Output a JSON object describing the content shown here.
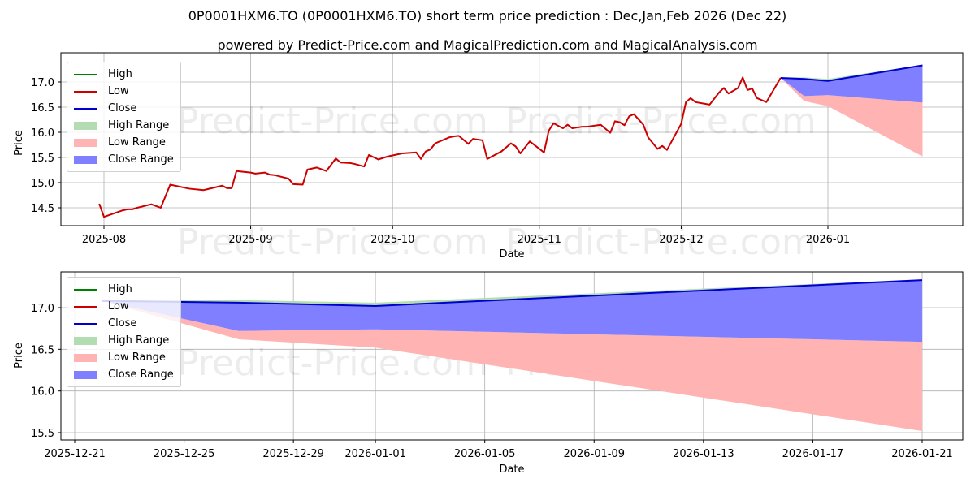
{
  "header": {
    "title": "0P0001HXM6.TO (0P0001HXM6.TO) short term price prediction : Dec,Jan,Feb 2026 (Dec 22)",
    "subtitle": "powered by Predict-Price.com and MagicalPrediction.com and MagicalAnalysis.com"
  },
  "watermark": "Predict-Price.com",
  "colors": {
    "high": "#008000",
    "low": "#cc0000",
    "close": "#0000cc",
    "high_range": "#b3dcb3",
    "low_range": "#ffb3b3",
    "close_range": "#7f7fff",
    "grid": "#b0b0b0"
  },
  "legend": {
    "items": [
      {
        "label": "High",
        "kind": "line",
        "color": "#008000"
      },
      {
        "label": "Low",
        "kind": "line",
        "color": "#cc0000"
      },
      {
        "label": "Close",
        "kind": "line",
        "color": "#0000cc"
      },
      {
        "label": "High Range",
        "kind": "patch",
        "color": "#b3dcb3"
      },
      {
        "label": "Low Range",
        "kind": "patch",
        "color": "#ffb3b3"
      },
      {
        "label": "Close Range",
        "kind": "patch",
        "color": "#7f7fff"
      }
    ]
  },
  "top_chart": {
    "ylabel": "Price",
    "xlabel": "Date",
    "yticks": [
      "17.0",
      "16.5",
      "16.0",
      "15.5",
      "15.0",
      "14.5"
    ],
    "xticks": [
      "2025-08",
      "2025-09",
      "2025-10",
      "2025-11",
      "2025-12",
      "2026-01"
    ]
  },
  "bottom_chart": {
    "ylabel": "Price",
    "xlabel": "Date",
    "yticks": [
      "17.0",
      "16.5",
      "16.0",
      "15.5"
    ],
    "xticks": [
      "2025-12-21",
      "2025-12-25",
      "2025-12-29",
      "2026-01-01",
      "2026-01-05",
      "2026-01-09",
      "2026-01-13",
      "2026-01-17",
      "2026-01-21"
    ]
  },
  "chart_data": [
    {
      "type": "line",
      "title": "0P0001HXM6.TO (0P0001HXM6.TO) short term price prediction : Dec,Jan,Feb 2026 (Dec 22)",
      "subtitle": "powered by Predict-Price.com and MagicalPrediction.com and MagicalAnalysis.com",
      "xlabel": "Date",
      "ylabel": "Price",
      "ylim": [
        14.15,
        17.45
      ],
      "xlim": [
        "2025-07-22",
        "2026-01-29"
      ],
      "grid": true,
      "legend_position": "upper left",
      "legend": [
        "High",
        "Low",
        "Close",
        "High Range",
        "Low Range",
        "Close Range"
      ],
      "series": [
        {
          "name": "Low (historical)",
          "color": "#cc0000",
          "x": [
            "2025-07-31",
            "2025-08-01",
            "2025-08-05",
            "2025-08-06",
            "2025-08-07",
            "2025-08-08",
            "2025-08-11",
            "2025-08-13",
            "2025-08-14",
            "2025-08-15",
            "2025-08-19",
            "2025-08-20",
            "2025-08-21",
            "2025-08-22",
            "2025-08-26",
            "2025-08-27",
            "2025-08-28",
            "2025-08-29",
            "2025-09-01",
            "2025-09-02",
            "2025-09-04",
            "2025-09-05",
            "2025-09-06",
            "2025-09-09",
            "2025-09-10",
            "2025-09-12",
            "2025-09-13",
            "2025-09-15",
            "2025-09-17",
            "2025-09-19",
            "2025-09-20",
            "2025-09-22",
            "2025-09-23",
            "2025-09-25",
            "2025-09-26",
            "2025-09-28",
            "2025-09-30",
            "2025-10-03",
            "2025-10-06",
            "2025-10-07",
            "2025-10-08",
            "2025-10-09",
            "2025-10-10",
            "2025-10-13",
            "2025-10-14",
            "2025-10-15",
            "2025-10-17",
            "2025-10-18",
            "2025-10-20",
            "2025-10-21",
            "2025-10-24",
            "2025-10-26",
            "2025-10-27",
            "2025-10-28",
            "2025-10-30",
            "2025-11-02",
            "2025-11-03",
            "2025-11-04",
            "2025-11-06",
            "2025-11-07",
            "2025-11-08",
            "2025-11-10",
            "2025-11-11",
            "2025-11-14",
            "2025-11-16",
            "2025-11-17",
            "2025-11-18",
            "2025-11-19",
            "2025-11-20",
            "2025-11-21",
            "2025-11-23",
            "2025-11-24",
            "2025-11-26",
            "2025-11-27",
            "2025-11-28",
            "2025-12-01",
            "2025-12-02",
            "2025-12-03",
            "2025-12-04",
            "2025-12-07",
            "2025-12-09",
            "2025-12-10",
            "2025-12-11",
            "2025-12-13",
            "2025-12-14",
            "2025-12-15",
            "2025-12-16",
            "2025-12-17",
            "2025-12-19",
            "2025-12-22"
          ],
          "values": [
            14.58,
            14.32,
            14.45,
            14.47,
            14.47,
            14.5,
            14.57,
            14.5,
            14.73,
            14.96,
            14.88,
            14.87,
            14.86,
            14.85,
            14.94,
            14.89,
            14.89,
            15.23,
            15.2,
            15.18,
            15.2,
            15.16,
            15.15,
            15.08,
            14.97,
            14.96,
            15.26,
            15.3,
            15.23,
            15.48,
            15.4,
            15.39,
            15.37,
            15.32,
            15.55,
            15.46,
            15.52,
            15.58,
            15.6,
            15.47,
            15.62,
            15.66,
            15.78,
            15.9,
            15.92,
            15.93,
            15.77,
            15.87,
            15.84,
            15.47,
            15.62,
            15.78,
            15.72,
            15.58,
            15.82,
            15.6,
            16.03,
            16.18,
            16.08,
            16.15,
            16.08,
            16.11,
            16.11,
            16.15,
            15.99,
            16.22,
            16.2,
            16.14,
            16.32,
            16.36,
            16.15,
            15.9,
            15.67,
            15.73,
            15.65,
            16.17,
            16.6,
            16.68,
            16.6,
            16.55,
            16.79,
            16.88,
            16.77,
            16.88,
            17.09,
            16.84,
            16.87,
            16.68,
            16.6,
            17.08
          ]
        },
        {
          "name": "Close (forecast)",
          "color": "#0000cc",
          "x": [
            "2025-12-22",
            "2025-12-27",
            "2026-01-01",
            "2026-01-21"
          ],
          "values": [
            17.08,
            17.06,
            17.02,
            17.33
          ]
        },
        {
          "name": "High Range (upper)",
          "color": "#b3dcb3",
          "x": [
            "2025-12-22",
            "2025-12-27",
            "2026-01-01",
            "2026-01-21"
          ],
          "values": [
            17.09,
            17.09,
            17.06,
            17.34
          ]
        },
        {
          "name": "Close Range (lower)",
          "color": "#7f7fff",
          "x": [
            "2025-12-22",
            "2025-12-27",
            "2026-01-01",
            "2026-01-21"
          ],
          "values": [
            17.08,
            16.72,
            16.74,
            16.59
          ]
        },
        {
          "name": "Low Range (lower)",
          "color": "#ffb3b3",
          "x": [
            "2025-12-22",
            "2025-12-27",
            "2026-01-01",
            "2026-01-21"
          ],
          "values": [
            17.08,
            16.62,
            16.52,
            15.52
          ]
        }
      ]
    },
    {
      "type": "area",
      "title": "Forecast detail",
      "xlabel": "Date",
      "ylabel": "Price",
      "ylim": [
        15.38,
        17.45
      ],
      "xlim": [
        "2025-12-20",
        "2026-01-22"
      ],
      "grid": true,
      "legend_position": "upper left",
      "legend": [
        "High",
        "Low",
        "Close",
        "High Range",
        "Low Range",
        "Close Range"
      ],
      "categories": [
        "2025-12-22",
        "2025-12-27",
        "2026-01-01",
        "2026-01-21"
      ],
      "series": [
        {
          "name": "Close",
          "values": [
            17.08,
            17.06,
            17.02,
            17.33
          ]
        },
        {
          "name": "High Range upper",
          "values": [
            17.09,
            17.09,
            17.06,
            17.34
          ]
        },
        {
          "name": "Close Range lower",
          "values": [
            17.08,
            16.72,
            16.74,
            16.59
          ]
        },
        {
          "name": "Low Range lower",
          "values": [
            17.08,
            16.62,
            16.52,
            15.52
          ]
        }
      ]
    }
  ]
}
